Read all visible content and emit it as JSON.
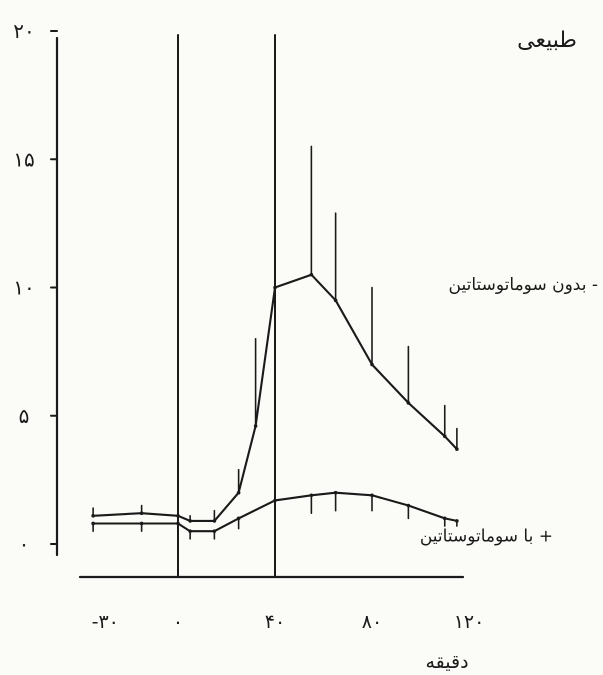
{
  "chart_data": {
    "type": "line",
    "title": "طبیعی",
    "xlabel": "دقیقه",
    "ylabel": "",
    "x_ticks": [
      {
        "value": -30,
        "label": "-۳۰"
      },
      {
        "value": 0,
        "label": "۰"
      },
      {
        "value": 40,
        "label": "۴۰"
      },
      {
        "value": 80,
        "label": "۸۰"
      },
      {
        "value": 120,
        "label": "۱۲۰"
      }
    ],
    "y_ticks": [
      {
        "value": 0,
        "label": "۰"
      },
      {
        "value": 5,
        "label": "۵"
      },
      {
        "value": 10,
        "label": "۱۰"
      },
      {
        "value": 15,
        "label": "۱۵"
      },
      {
        "value": 20,
        "label": "۲۰"
      }
    ],
    "xlim": [
      -40,
      120
    ],
    "ylim": [
      0,
      20
    ],
    "grid": false,
    "vertical_markers": [
      0,
      40
    ],
    "series": [
      {
        "name": "بدون سوماتوستاتین -",
        "x": [
          -35,
          -15,
          0,
          5,
          15,
          25,
          32,
          40,
          55,
          65,
          80,
          95,
          110,
          115
        ],
        "y": [
          1.1,
          1.2,
          1.1,
          0.9,
          0.9,
          2.0,
          4.6,
          10.0,
          10.5,
          9.5,
          7.0,
          5.5,
          4.2,
          3.7
        ],
        "error_up": [
          0.3,
          0.3,
          0.2,
          0.2,
          0.4,
          0.9,
          3.4,
          0,
          5.0,
          3.4,
          3.0,
          2.2,
          1.2,
          0.8
        ]
      },
      {
        "name": "با سوماتوستاتین +",
        "x": [
          -35,
          -15,
          0,
          5,
          15,
          25,
          40,
          55,
          65,
          80,
          95,
          110,
          115
        ],
        "y": [
          0.8,
          0.8,
          0.8,
          0.5,
          0.5,
          1.0,
          1.7,
          1.9,
          2.0,
          1.9,
          1.5,
          1.0,
          0.9
        ],
        "error_down": [
          0.3,
          0.3,
          0.3,
          0.3,
          0.3,
          0.4,
          0.4,
          0.7,
          0.7,
          0.6,
          0.5,
          0.3,
          0.2
        ]
      }
    ]
  }
}
